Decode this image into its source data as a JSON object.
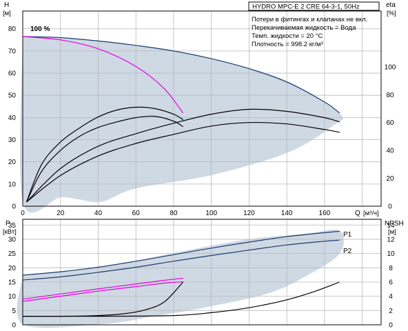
{
  "chart_data": [
    {
      "type": "line",
      "title": "HYDRO MPC-E 2 CRE 64-3-1, 50Hz",
      "info_lines": [
        "Потери в фитингах и клапанах не вкл.",
        "Перекачиваемая жидкость = Вода",
        "Темп. жидкости = 20 °C",
        "Плотность = 998.2 кг/м³"
      ],
      "xlabel": "Q",
      "xunit": "[м³/ч]",
      "ylabel_left": "H",
      "yunit_left": "[м]",
      "ylabel_right": "eta",
      "yunit_right": "[%]",
      "xlim": [
        0,
        190
      ],
      "ylim": [
        0,
        88
      ],
      "ylim_right": [
        0,
        140
      ],
      "xticks": [
        "0",
        "20",
        "40",
        "60",
        "80",
        "100",
        "120",
        "140",
        "160"
      ],
      "yticks_left": [
        "0",
        "10",
        "20",
        "30",
        "40",
        "50",
        "60",
        "70",
        "80"
      ],
      "yticks_right": [
        "0",
        "20",
        "40",
        "60",
        "80",
        "100"
      ],
      "grid": true,
      "annotation": "100 %",
      "operating_area": [
        [
          0,
          76.5
        ],
        [
          40,
          74.5
        ],
        [
          80,
          70
        ],
        [
          110,
          64.5
        ],
        [
          140,
          56.5
        ],
        [
          168,
          42
        ],
        [
          164,
          36
        ],
        [
          140,
          24
        ],
        [
          100,
          14
        ],
        [
          60,
          8
        ],
        [
          42,
          2
        ],
        [
          30,
          3
        ],
        [
          20,
          4
        ],
        [
          0,
          2
        ]
      ],
      "series": [
        {
          "color": "#1a3a6b",
          "axis": "left",
          "points": [
            [
              0,
              76.5
            ],
            [
              20,
              76
            ],
            [
              40,
              74.5
            ],
            [
              60,
              72.5
            ],
            [
              80,
              70
            ],
            [
              100,
              66.5
            ],
            [
              120,
              62
            ],
            [
              140,
              56
            ],
            [
              160,
              47
            ],
            [
              168,
              42
            ]
          ]
        },
        {
          "color": "#e600e6",
          "axis": "left",
          "points": [
            [
              0,
              76.5
            ],
            [
              20,
              75
            ],
            [
              40,
              71
            ],
            [
              60,
              63
            ],
            [
              75,
              53
            ],
            [
              85,
              42
            ]
          ]
        },
        {
          "color": "#000000",
          "axis": "right",
          "points": [
            [
              2,
              3
            ],
            [
              10,
              25
            ],
            [
              20,
              40
            ],
            [
              30,
              50
            ],
            [
              40,
              56.5
            ],
            [
              50,
              60.5
            ],
            [
              60,
              63.5
            ],
            [
              70,
              64.5
            ],
            [
              80,
              61
            ],
            [
              85,
              57
            ]
          ]
        },
        {
          "color": "#000000",
          "axis": "right",
          "points": [
            [
              2,
              3
            ],
            [
              10,
              30
            ],
            [
              20,
              46
            ],
            [
              30,
              56
            ],
            [
              40,
              64
            ],
            [
              50,
              69
            ],
            [
              60,
              71
            ],
            [
              70,
              70
            ],
            [
              80,
              66
            ],
            [
              85,
              62
            ]
          ]
        },
        {
          "color": "#000000",
          "axis": "right",
          "points": [
            [
              2,
              3
            ],
            [
              20,
              22
            ],
            [
              40,
              36
            ],
            [
              60,
              45
            ],
            [
              80,
              51.5
            ],
            [
              100,
              57.5
            ],
            [
              120,
              60
            ],
            [
              140,
              59
            ],
            [
              160,
              55
            ],
            [
              168,
              53
            ]
          ]
        },
        {
          "color": "#000000",
          "axis": "right",
          "points": [
            [
              2,
              3
            ],
            [
              20,
              27
            ],
            [
              40,
              43
            ],
            [
              60,
              52
            ],
            [
              80,
              59.5
            ],
            [
              100,
              66
            ],
            [
              120,
              69.5
            ],
            [
              140,
              68
            ],
            [
              160,
              63.5
            ],
            [
              168,
              60.5
            ]
          ]
        }
      ]
    },
    {
      "type": "line",
      "xlabel": "",
      "ylabel_left": "P",
      "yunit_left": "[кВт]",
      "ylabel_right": "NPSH",
      "yunit_right": "[м]",
      "xlim": [
        0,
        190
      ],
      "ylim": [
        0,
        37
      ],
      "ylim_right": [
        0,
        14.8
      ],
      "yticks_left": [
        "0",
        "5",
        "10",
        "15",
        "20",
        "25",
        "30",
        "35"
      ],
      "yticks_right": [
        "0",
        "2",
        "4",
        "6",
        "8",
        "10",
        "12",
        "14"
      ],
      "grid": true,
      "operating_area": [
        [
          0,
          17.4
        ],
        [
          30,
          19.5
        ],
        [
          60,
          22.5
        ],
        [
          90,
          26.5
        ],
        [
          120,
          30
        ],
        [
          150,
          32
        ],
        [
          168,
          33
        ],
        [
          168,
          25
        ],
        [
          150,
          17
        ],
        [
          130,
          11
        ],
        [
          100,
          6.5
        ],
        [
          70,
          3
        ],
        [
          42,
          0.3
        ],
        [
          0,
          0.3
        ]
      ],
      "series": [
        {
          "name": "P1",
          "color": "#1a3a6b",
          "axis": "left",
          "points": [
            [
              0,
              17.4
            ],
            [
              20,
              18.6
            ],
            [
              40,
              20.2
            ],
            [
              60,
              22.3
            ],
            [
              80,
              24.6
            ],
            [
              100,
              26.9
            ],
            [
              120,
              29
            ],
            [
              140,
              30.9
            ],
            [
              160,
              32.3
            ],
            [
              168,
              32.8
            ]
          ]
        },
        {
          "name": "P2",
          "color": "#1a3a6b",
          "axis": "left",
          "points": [
            [
              0,
              15.7
            ],
            [
              20,
              16.8
            ],
            [
              40,
              18.4
            ],
            [
              60,
              20.2
            ],
            [
              80,
              22.3
            ],
            [
              100,
              24.3
            ],
            [
              120,
              26.2
            ],
            [
              140,
              28
            ],
            [
              160,
              29.3
            ],
            [
              168,
              29.7
            ]
          ]
        },
        {
          "color": "#e600e6",
          "axis": "left",
          "points": [
            [
              0,
              9
            ],
            [
              20,
              10.8
            ],
            [
              40,
              12.6
            ],
            [
              60,
              14.3
            ],
            [
              75,
              15.6
            ],
            [
              85,
              16.3
            ]
          ]
        },
        {
          "color": "#e600e6",
          "axis": "left",
          "points": [
            [
              0,
              8.2
            ],
            [
              20,
              10
            ],
            [
              40,
              11.8
            ],
            [
              60,
              13.4
            ],
            [
              75,
              14.6
            ],
            [
              85,
              15.1
            ]
          ]
        },
        {
          "color": "#000000",
          "axis": "right",
          "points": [
            [
              0,
              1.2
            ],
            [
              20,
              1.2
            ],
            [
              40,
              1.3
            ],
            [
              55,
              1.6
            ],
            [
              65,
              2.1
            ],
            [
              75,
              3.2
            ],
            [
              85,
              6
            ]
          ]
        },
        {
          "color": "#000000",
          "axis": "right",
          "points": [
            [
              0,
              1.2
            ],
            [
              40,
              1.2
            ],
            [
              80,
              1.3
            ],
            [
              100,
              1.7
            ],
            [
              120,
              2.4
            ],
            [
              140,
              3.5
            ],
            [
              155,
              4.7
            ],
            [
              168,
              6
            ]
          ]
        }
      ]
    }
  ]
}
